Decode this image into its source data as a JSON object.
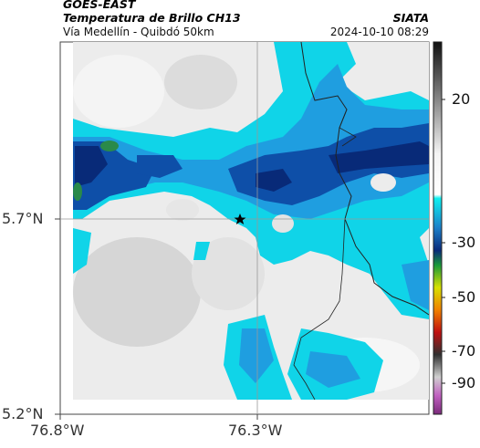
{
  "header": {
    "satellite": "GOES-EAST",
    "product": "Temperatura de Brillo CH13",
    "region": "Vía Medellín - Quibdó 50km",
    "agency": "SIATA",
    "timestamp": "2024-10-10 08:29"
  },
  "axes": {
    "lat_labels": [
      "5.7°N",
      "5.2°N"
    ],
    "lon_labels": [
      "76.8°W",
      "76.3°W"
    ]
  },
  "colorbar": {
    "tick_labels": [
      "20",
      "-30",
      "-50",
      "-70",
      "-90"
    ],
    "unit": ""
  },
  "map": {
    "marker": "star",
    "colors": {
      "clear_sky": "#e8e8e8",
      "cloud_light": "#10d4e8",
      "cloud_mid": "#1f9ee0",
      "cloud_deep": "#0e4fa8",
      "cloud_core": "#082a78",
      "convective": "#2a8a4a",
      "border_line": "#222222"
    }
  }
}
